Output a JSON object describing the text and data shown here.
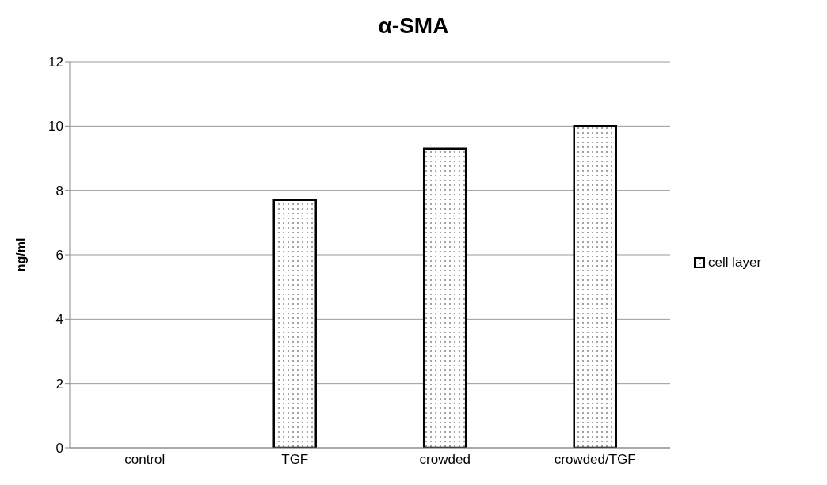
{
  "chart_data": {
    "type": "bar",
    "title": "α-SMA",
    "ylabel": "ng/ml",
    "categories": [
      "control",
      "TGF",
      "crowded",
      "crowded/TGF"
    ],
    "series": [
      {
        "name": "cell layer",
        "color": "#000000",
        "values": [
          0,
          7.7,
          9.3,
          10
        ]
      }
    ],
    "ylim": [
      0,
      12
    ],
    "yticks": [
      0,
      2,
      4,
      6,
      8,
      10,
      12
    ],
    "grid": "y",
    "legend": "right"
  }
}
